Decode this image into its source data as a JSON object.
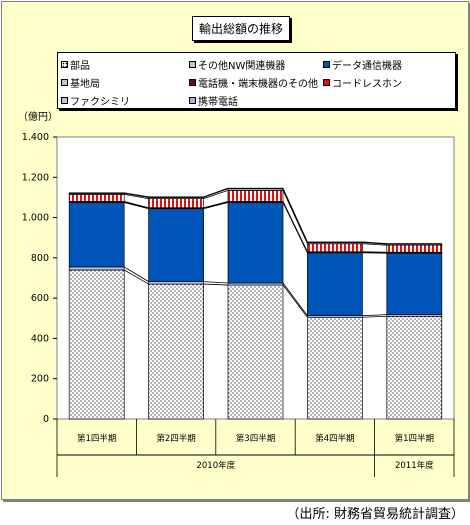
{
  "title": "輸出総額の推移",
  "unit_label": "（億円）",
  "source_note": "（出所: 財務省貿易統計調査）",
  "legend": [
    {
      "label": "部品",
      "color": "#ffffff",
      "pattern": "dots"
    },
    {
      "label": "その他NW関連機器",
      "color": "#c0c0e0"
    },
    {
      "label": "データ通信機器",
      "color": "#0055b8"
    },
    {
      "label": "基地局",
      "color": "#c0c0e0"
    },
    {
      "label": "電話機・端末機器のその他",
      "color": "#5a0a3c"
    },
    {
      "label": "コードレスホン",
      "color": "#e01010"
    },
    {
      "label": "ファクシミリ",
      "color": "#c0c0e0"
    },
    {
      "label": "携帯電話",
      "color": "#c8a0e0"
    }
  ],
  "groups": [
    {
      "label": "2010年度",
      "span": 4
    },
    {
      "label": "2011年度",
      "span": 1
    }
  ],
  "chart_data": {
    "type": "bar",
    "stacked": true,
    "title": "輸出総額の推移",
    "ylabel": "（億円）",
    "ylim": [
      0,
      1400
    ],
    "yticks": [
      0,
      200,
      400,
      600,
      800,
      1000,
      1200,
      1400
    ],
    "ytick_labels": [
      "0",
      "200",
      "400",
      "600",
      "800",
      "1.000",
      "1.200",
      "1.400"
    ],
    "categories": [
      "第1四半期",
      "第2四半期",
      "第3四半期",
      "第4四半期",
      "第1四半期"
    ],
    "series": [
      {
        "name": "部品",
        "values": [
          740,
          670,
          665,
          505,
          510
        ],
        "color": "#ffffff",
        "pattern": "dots"
      },
      {
        "name": "その他NW関連機器",
        "values": [
          15,
          12,
          10,
          8,
          8
        ],
        "color": "#c0c0e0"
      },
      {
        "name": "データ通信機器",
        "values": [
          320,
          362,
          400,
          312,
          305
        ],
        "color": "#0055b8"
      },
      {
        "name": "基地局",
        "values": [
          3,
          3,
          3,
          3,
          3
        ],
        "color": "#c0c0e0"
      },
      {
        "name": "電話機・端末機器のその他",
        "values": [
          2,
          2,
          2,
          2,
          2
        ],
        "color": "#5a0a3c"
      },
      {
        "name": "コードレスホン",
        "values": [
          35,
          45,
          55,
          40,
          35
        ],
        "color": "#e01010",
        "pattern": "stripes"
      },
      {
        "name": "ファクシミリ",
        "values": [
          5,
          6,
          8,
          6,
          5
        ],
        "color": "#c0c0e0"
      },
      {
        "name": "携帯電話",
        "values": [
          3,
          3,
          3,
          3,
          3
        ],
        "color": "#c8a0e0"
      }
    ],
    "grid": false,
    "legend_position": "top"
  }
}
